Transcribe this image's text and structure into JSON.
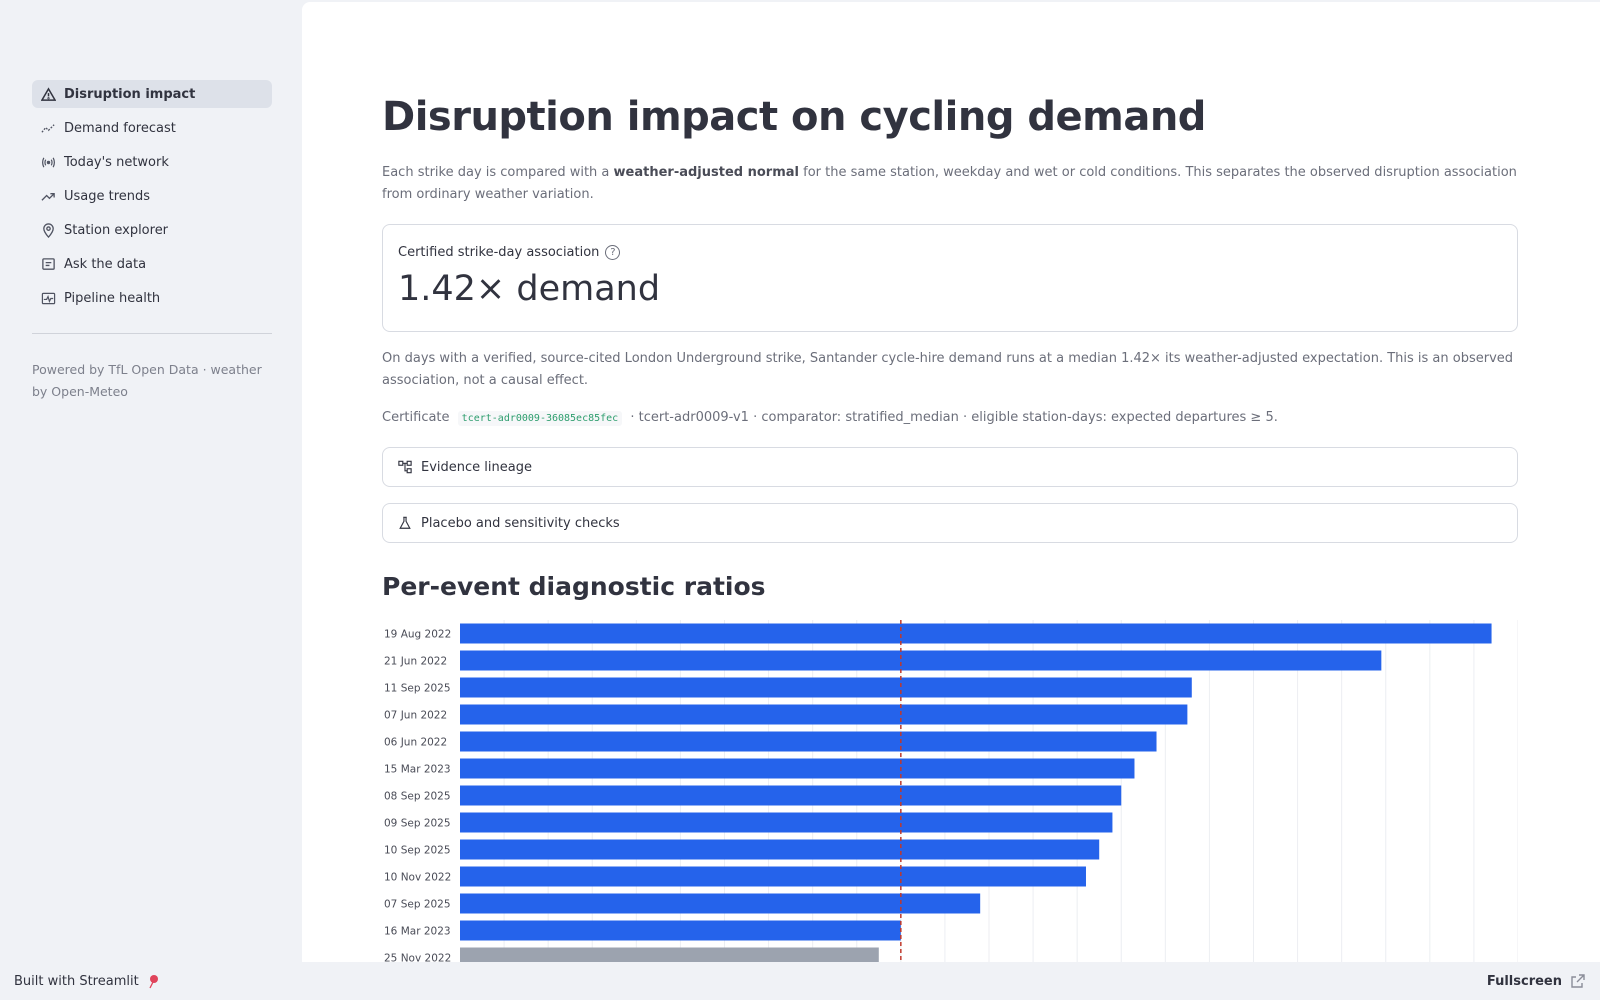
{
  "sidebar": {
    "items": [
      {
        "label": "Disruption impact",
        "icon": "warning-triangle-icon",
        "active": true
      },
      {
        "label": "Demand forecast",
        "icon": "trend-line-icon"
      },
      {
        "label": "Today's network",
        "icon": "broadcast-icon"
      },
      {
        "label": "Usage trends",
        "icon": "trending-up-icon"
      },
      {
        "label": "Station explorer",
        "icon": "location-pin-icon"
      },
      {
        "label": "Ask the data",
        "icon": "chat-icon"
      },
      {
        "label": "Pipeline health",
        "icon": "monitor-heart-icon"
      }
    ],
    "footer_text": "Powered by TfL Open Data · weather by Open-Meteo"
  },
  "main": {
    "title": "Disruption impact on cycling demand",
    "intro_before": "Each strike day is compared with a ",
    "intro_bold": "weather-adjusted normal",
    "intro_after": " for the same station, weekday and wet or cold conditions. This separates the observed disruption association from ordinary weather variation.",
    "metric_label": "Certified strike-day association",
    "metric_value": "1.42× demand",
    "paragraph": "On days with a verified, source-cited London Underground strike, Santander cycle-hire demand runs at a median 1.42× its weather-adjusted expectation. This is an observed association, not a causal effect.",
    "cert_prefix": "Certificate",
    "cert_code": "tcert-adr0009-36085ec85fec",
    "cert_suffix": "· tcert-adr0009-v1 · comparator: stratified_median · eligible station-days: expected departures ≥ 5.",
    "expander_1": "Evidence lineage",
    "expander_2": "Placebo and sensitivity checks",
    "section_title": "Per-event diagnostic ratios"
  },
  "chart_data": {
    "type": "bar",
    "orientation": "horizontal",
    "categories": [
      "19 Aug 2022",
      "21 Jun 2022",
      "11 Sep 2025",
      "07 Jun 2022",
      "06 Jun 2022",
      "15 Mar 2023",
      "08 Sep 2025",
      "09 Sep 2025",
      "10 Sep 2025",
      "10 Nov 2022",
      "07 Sep 2025",
      "16 Mar 2023",
      "25 Nov 2022"
    ],
    "values": [
      2.34,
      2.09,
      1.66,
      1.65,
      1.58,
      1.53,
      1.5,
      1.48,
      1.45,
      1.42,
      1.18,
      1.0,
      0.95
    ],
    "reference_line": 1.0,
    "bar_color": "#2563eb",
    "muted_bar_color": "#9ca3af",
    "reference_line_color": "#c0392b",
    "grid": true
  },
  "footer": {
    "built_with": "Built with Streamlit",
    "fullscreen": "Fullscreen"
  }
}
